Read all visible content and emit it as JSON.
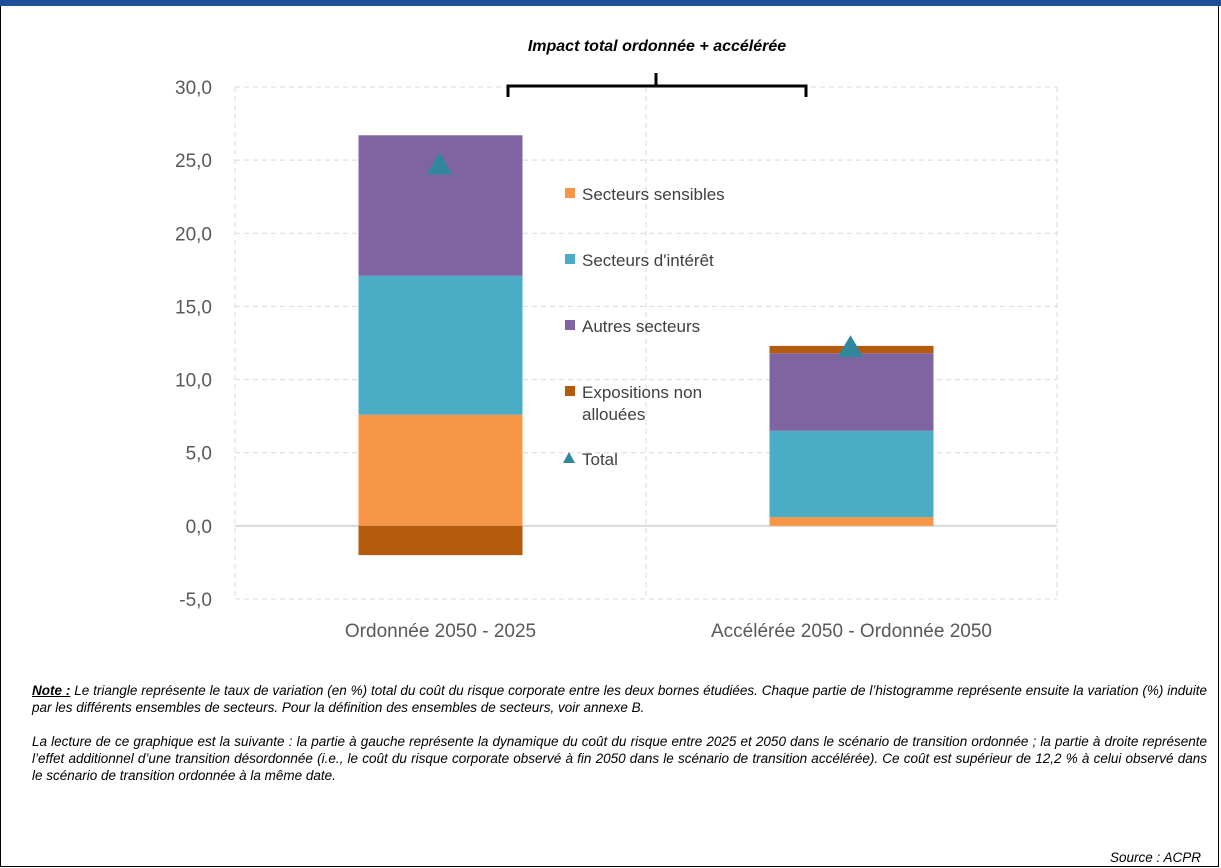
{
  "chart_data": {
    "type": "bar",
    "stacked": true,
    "categories": [
      "Ordonnée 2050 - 2025",
      "Accélérée 2050 - Ordonnée 2050"
    ],
    "series": [
      {
        "name": "Secteurs sensibles",
        "color": "#f79646",
        "values": [
          7.6,
          0.6
        ]
      },
      {
        "name": "Secteurs d'intérêt",
        "color": "#4bacc6",
        "values": [
          9.5,
          5.9
        ]
      },
      {
        "name": "Autres secteurs",
        "color": "#8064a2",
        "values": [
          9.6,
          5.3
        ]
      },
      {
        "name": "Expositions non allouées",
        "color": "#b45a0c",
        "values": [
          -2.0,
          0.5
        ]
      }
    ],
    "total": {
      "name": "Total",
      "color": "#31859c",
      "values": [
        24.7,
        12.2
      ]
    },
    "ylim": [
      -5,
      30
    ],
    "yticks": [
      "-5,0",
      "0,0",
      "5,0",
      "10,0",
      "15,0",
      "20,0",
      "25,0",
      "30,0"
    ],
    "annotation": "Impact total ordonnée + accélérée",
    "grid": true,
    "legend_position": "inside-center"
  },
  "legend": {
    "sensibles": "Secteurs sensibles",
    "interet": "Secteurs d'intérêt",
    "autres": "Autres secteurs",
    "expositions_line1": "Expositions non",
    "expositions_line2": "allouées",
    "total": "Total"
  },
  "notes": {
    "note_label": "Note :",
    "note_text": "Le triangle représente le taux de variation (en %) total du coût du risque corporate entre les deux bornes étudiées. Chaque partie de l’histogramme représente ensuite la variation (%) induite par les différents ensembles de secteurs. Pour la définition des ensembles de secteurs, voir annexe B.",
    "reading": "La lecture de ce graphique est la suivante : la partie à gauche représente la dynamique du coût du risque entre 2025 et 2050 dans le scénario de transition ordonnée ; la partie à droite représente l’effet additionnel d’une transition désordonnée (i.e., le coût du risque corporate observé à fin 2050 dans le scénario de transition accélérée). Ce coût est supérieur de 12,2 % à celui observé dans le scénario de transition ordonnée à la même date.",
    "source": "Source : ACPR"
  }
}
